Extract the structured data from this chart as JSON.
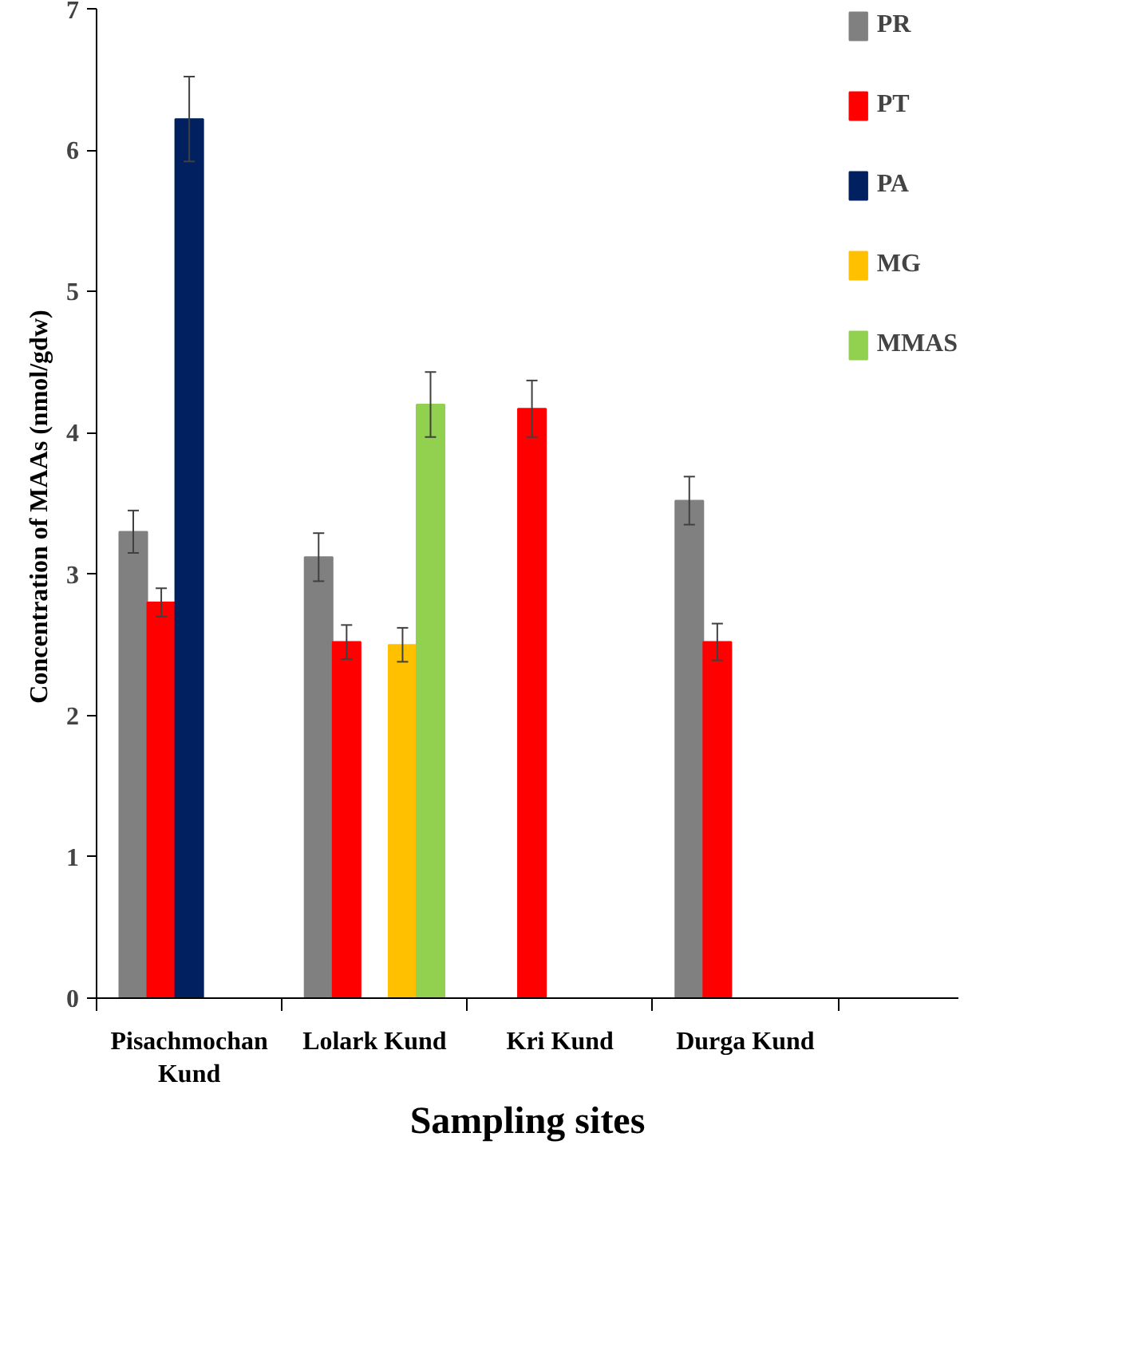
{
  "chart_data": {
    "type": "bar",
    "xlabel": "Sampling sites",
    "ylabel": "Concentration of MAAs  (nmol/gdw)",
    "categories": [
      "Pisachmochan Kund",
      "Lolark Kund",
      "Kri Kund",
      "Durga Kund"
    ],
    "series": [
      {
        "name": "PR",
        "color": "#808080",
        "values": [
          3.3,
          3.12,
          null,
          3.52
        ],
        "errors": [
          0.15,
          0.17,
          null,
          0.17
        ]
      },
      {
        "name": "PT",
        "color": "#ff0000",
        "values": [
          2.8,
          2.52,
          4.17,
          2.52
        ],
        "errors": [
          0.1,
          0.12,
          0.2,
          0.13
        ]
      },
      {
        "name": "PA",
        "color": "#002060",
        "values": [
          6.22,
          null,
          null,
          null
        ],
        "errors": [
          0.3,
          null,
          null,
          null
        ]
      },
      {
        "name": "MG",
        "color": "#ffc000",
        "values": [
          null,
          2.5,
          null,
          null
        ],
        "errors": [
          null,
          0.12,
          null,
          null
        ]
      },
      {
        "name": "MMAS",
        "color": "#92d050",
        "values": [
          null,
          4.2,
          null,
          null
        ],
        "errors": [
          null,
          0.23,
          null,
          null
        ]
      }
    ],
    "ylim": [
      0,
      7
    ],
    "yticks": [
      0,
      1,
      2,
      3,
      4,
      5,
      6,
      7
    ],
    "grid": false,
    "legend": "right"
  }
}
